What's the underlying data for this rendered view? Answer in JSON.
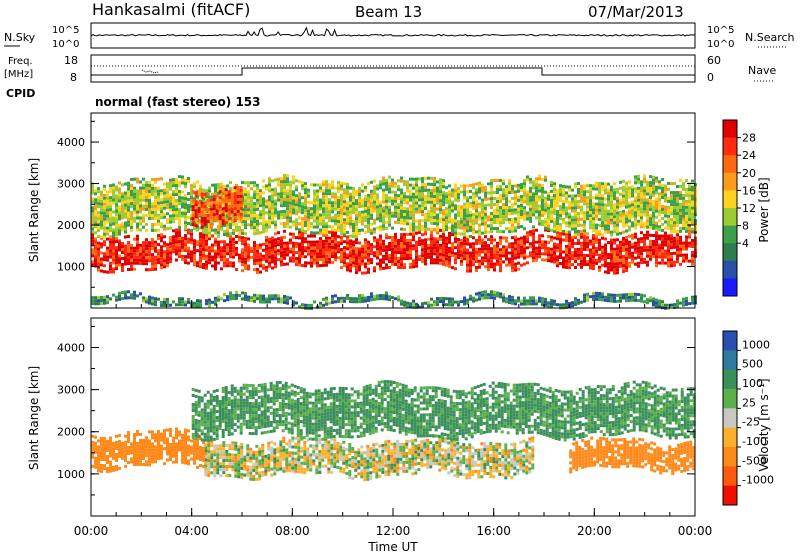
{
  "header": {
    "station": "Hankasalmi (fitACF)",
    "beam": "Beam 13",
    "date": "07/Mar/2013"
  },
  "top_panels": {
    "nsky": {
      "label": "N.Sky",
      "left_ticks": [
        "10^5",
        "10^0"
      ],
      "right_ticks": [
        "10^5",
        "10^0"
      ],
      "right_label": "N.Search"
    },
    "freq": {
      "label_line1": "Freq.",
      "label_line2": "[MHz]",
      "left_ticks": [
        "18",
        "8"
      ],
      "right_ticks": [
        "60",
        "0"
      ],
      "right_label": "Nave"
    },
    "cpid": {
      "label": "CPID",
      "value": "normal (fast stereo) 153"
    }
  },
  "axes": {
    "ylabel": "Slant Range [km]",
    "yticks": [
      "4000",
      "3000",
      "2000",
      "1000"
    ],
    "xticks": [
      "00:00",
      "04:00",
      "08:00",
      "12:00",
      "16:00",
      "20:00",
      "00:00"
    ],
    "xlabel": "Time UT"
  },
  "colorbars": {
    "power": {
      "label": "Power [dB]",
      "ticks": [
        "28",
        "24",
        "20",
        "16",
        "12",
        "8",
        "4"
      ],
      "colors": [
        "#1a1aff",
        "#2a4fa8",
        "#2e7d4f",
        "#3aa04a",
        "#9acd32",
        "#ffd21f",
        "#ff9a1a",
        "#ff6a10",
        "#ff2a10",
        "#e00000"
      ]
    },
    "velocity": {
      "label": "Velocity [m s⁻¹]",
      "ticks": [
        "1000",
        "500",
        "100",
        "25",
        "-25",
        "-100",
        "-500",
        "-1000"
      ],
      "colors": [
        "#2a4fb0",
        "#2e7aa0",
        "#3a8f5a",
        "#5ab04a",
        "#c8c8c0",
        "#ffb02a",
        "#ff8a1a",
        "#ff5a10",
        "#f01000"
      ]
    }
  },
  "chart_data": [
    {
      "type": "heatmap",
      "name": "power",
      "x_range": [
        "00:00",
        "24:00"
      ],
      "y_range_km": [
        0,
        4700
      ],
      "value_unit": "dB",
      "value_range": [
        0,
        30
      ],
      "features": [
        {
          "time_h": [
            0.0,
            24.0
          ],
          "range_km": [
            1000,
            1800
          ],
          "value_db": 27
        },
        {
          "time_h": [
            0.0,
            24.0
          ],
          "range_km": [
            1800,
            3100
          ],
          "value_db": 14
        },
        {
          "time_h": [
            4.0,
            6.0
          ],
          "range_km": [
            2100,
            2900
          ],
          "value_db": 25
        },
        {
          "time_h": [
            0.0,
            24.0
          ],
          "range_km": [
            100,
            300
          ],
          "value_db": 8
        }
      ]
    },
    {
      "type": "heatmap",
      "name": "velocity",
      "x_range": [
        "00:00",
        "24:00"
      ],
      "y_range_km": [
        0,
        4700
      ],
      "value_unit": "m/s",
      "value_range": [
        -1000,
        1000
      ],
      "features": [
        {
          "time_h": [
            4.5,
            17.5
          ],
          "range_km": [
            1000,
            1800
          ],
          "value_ms": 0
        },
        {
          "time_h": [
            0.0,
            4.5
          ],
          "range_km": [
            1200,
            2000
          ],
          "value_ms": -300
        },
        {
          "time_h": [
            4.0,
            24.0
          ],
          "range_km": [
            1900,
            3100
          ],
          "value_ms": 150
        },
        {
          "time_h": [
            19.0,
            24.0
          ],
          "range_km": [
            1100,
            1800
          ],
          "value_ms": -300
        }
      ]
    }
  ]
}
